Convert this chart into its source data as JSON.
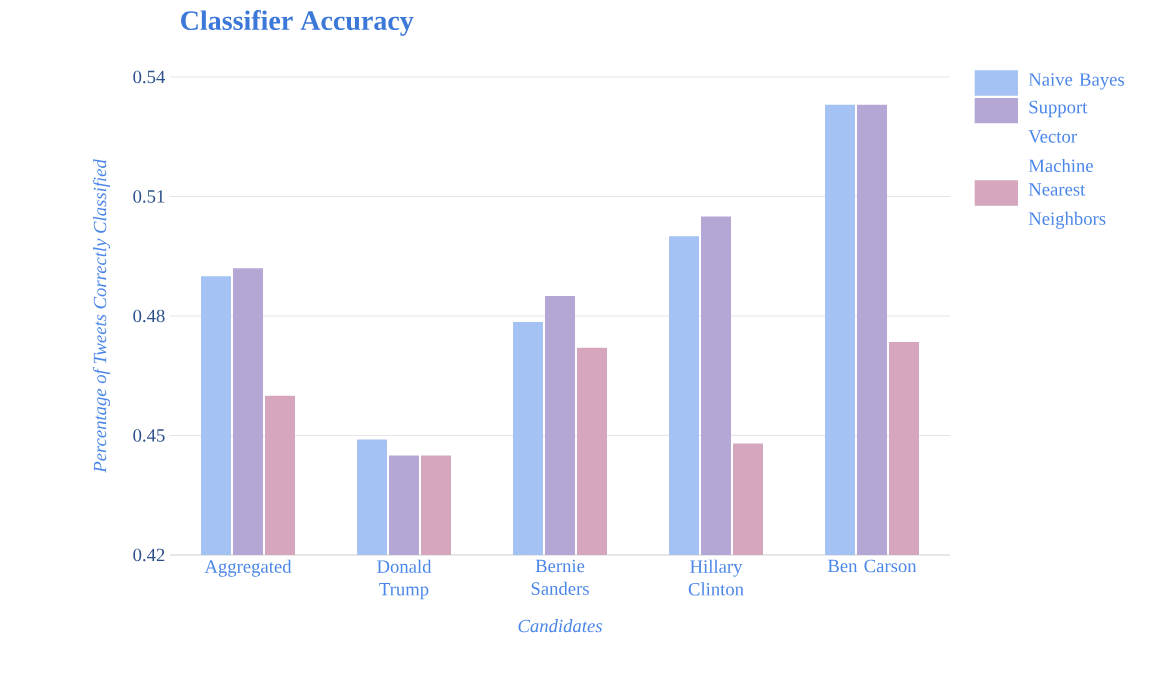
{
  "chart_data": {
    "type": "bar",
    "title": "Classifier Accuracy",
    "xlabel": "Candidates",
    "ylabel": "Percentage of Tweets Correctly Classified",
    "categories": [
      "Aggregated",
      "Donald Trump",
      "Bernie Sanders",
      "Hillary Clinton",
      "Ben Carson"
    ],
    "series": [
      {
        "name": "Naive Bayes",
        "color": "#a4c2f4",
        "values": [
          0.49,
          0.449,
          0.4785,
          0.5,
          0.533
        ]
      },
      {
        "name": "Support Vector Machine",
        "color": "#b4a7d6",
        "values": [
          0.492,
          0.445,
          0.485,
          0.505,
          0.533
        ]
      },
      {
        "name": "Nearest Neighbors",
        "color": "#d5a6bd",
        "values": [
          0.46,
          0.445,
          0.472,
          0.448,
          0.4735
        ]
      }
    ],
    "ylim": [
      0.42,
      0.54
    ],
    "yticks": [
      0.42,
      0.45,
      0.48,
      0.51,
      0.54
    ],
    "grid": "y",
    "legend": "right"
  }
}
